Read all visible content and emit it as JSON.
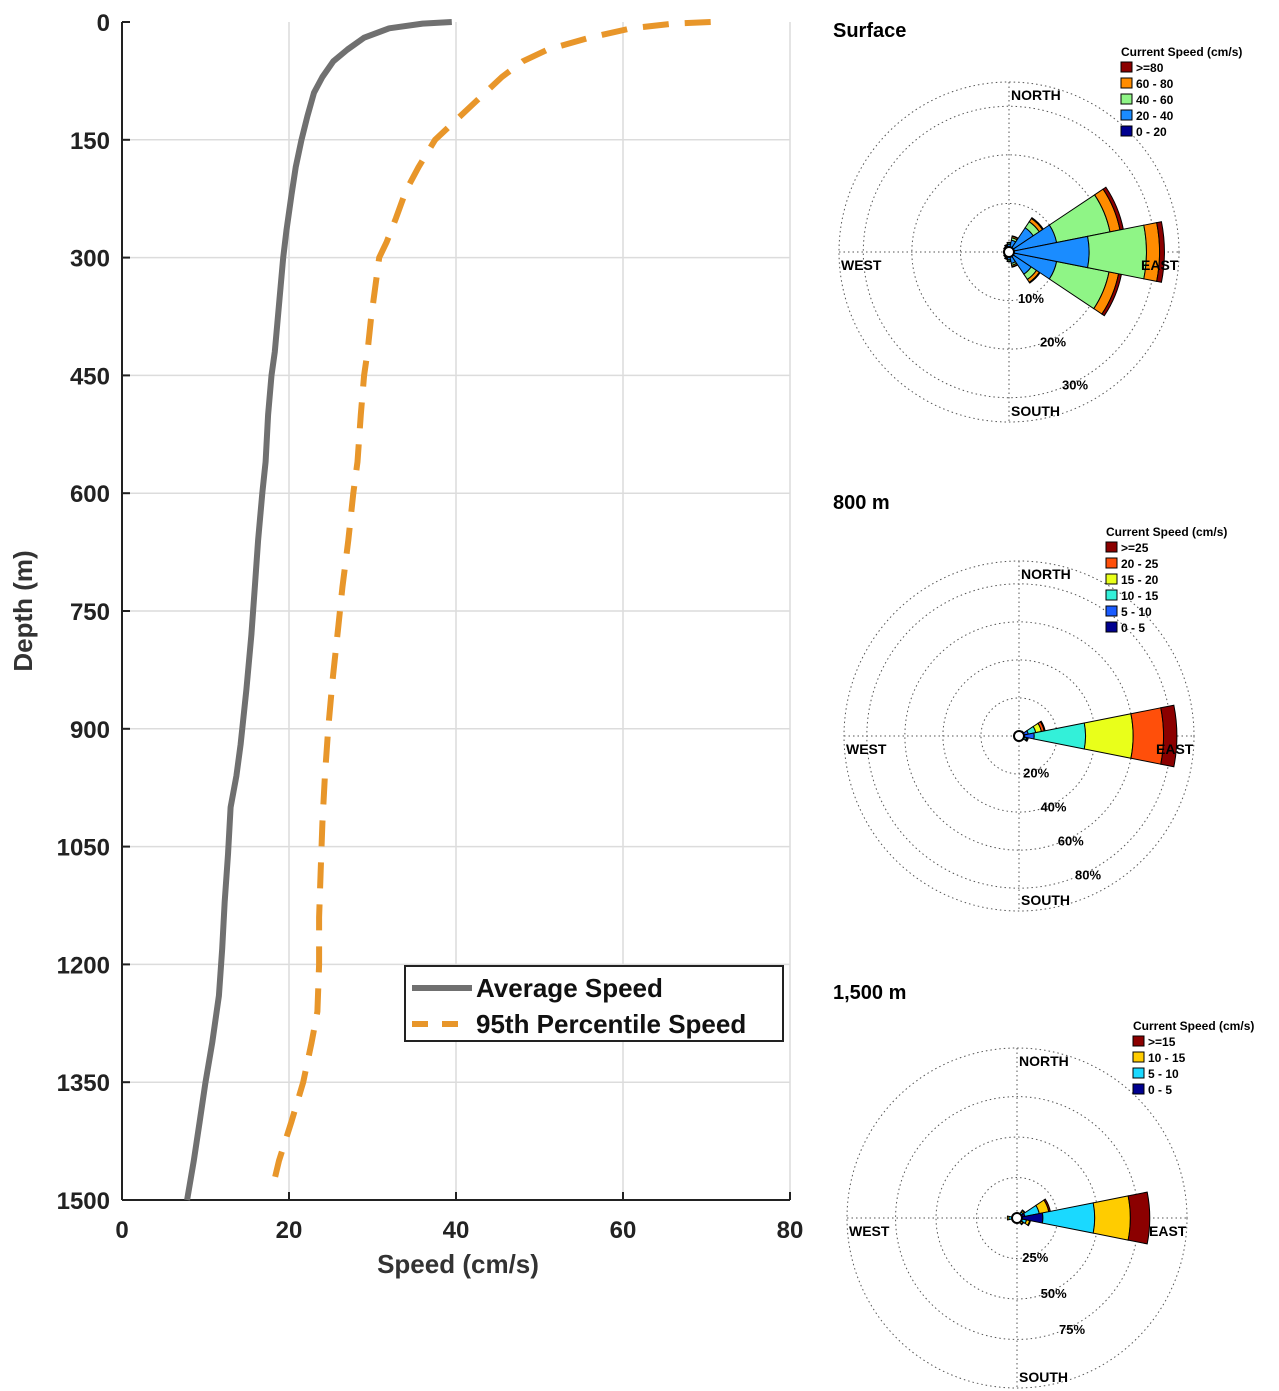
{
  "profile": {
    "xlabel": "Speed (cm/s)",
    "ylabel": "Depth (m)",
    "xticks": [
      "0",
      "20",
      "40",
      "60",
      "80"
    ],
    "yticks": [
      "0",
      "150",
      "300",
      "450",
      "600",
      "750",
      "900",
      "1050",
      "1200",
      "1350",
      "1500"
    ],
    "legend": {
      "average": "Average Speed",
      "p95": "95th Percentile Speed"
    }
  },
  "chart_data": [
    {
      "type": "line",
      "xlabel": "Speed (cm/s)",
      "ylabel": "Depth (m)",
      "xlim": [
        0,
        80
      ],
      "ylim": [
        1500,
        0
      ],
      "y_axis_reversed": true,
      "grid": true,
      "legend_position": "lower-right",
      "series": [
        {
          "name": "Average Speed",
          "style": "solid",
          "color": "#707070",
          "points": [
            [
              39.5,
              0
            ],
            [
              36,
              2
            ],
            [
              32,
              8
            ],
            [
              29,
              20
            ],
            [
              27,
              35
            ],
            [
              25.3,
              50
            ],
            [
              24,
              70
            ],
            [
              23,
              90
            ],
            [
              22.2,
              120
            ],
            [
              21.5,
              150
            ],
            [
              20.8,
              185
            ],
            [
              20.3,
              220
            ],
            [
              19.7,
              265
            ],
            [
              19.3,
              300
            ],
            [
              18.8,
              360
            ],
            [
              18.3,
              420
            ],
            [
              17.9,
              450
            ],
            [
              17.5,
              500
            ],
            [
              17.2,
              560
            ],
            [
              16.8,
              600
            ],
            [
              16.3,
              660
            ],
            [
              15.9,
              720
            ],
            [
              15.5,
              780
            ],
            [
              14.9,
              850
            ],
            [
              14.2,
              920
            ],
            [
              13.7,
              960
            ],
            [
              13.0,
              1000
            ],
            [
              12.7,
              1060
            ],
            [
              12.3,
              1120
            ],
            [
              12.0,
              1180
            ],
            [
              11.6,
              1240
            ],
            [
              10.8,
              1300
            ],
            [
              10.0,
              1350
            ],
            [
              9.3,
              1400
            ],
            [
              8.6,
              1450
            ],
            [
              7.8,
              1500
            ]
          ]
        },
        {
          "name": "95th Percentile Speed",
          "style": "dashed",
          "color": "#e8962a",
          "points": [
            [
              70.5,
              0
            ],
            [
              66,
              2
            ],
            [
              61,
              8
            ],
            [
              56,
              20
            ],
            [
              51,
              35
            ],
            [
              48,
              50
            ],
            [
              45.5,
              70
            ],
            [
              42.5,
              100
            ],
            [
              39.5,
              130
            ],
            [
              37.5,
              150
            ],
            [
              35.5,
              185
            ],
            [
              34,
              215
            ],
            [
              32.8,
              250
            ],
            [
              31.7,
              280
            ],
            [
              30.8,
              300
            ],
            [
              30.3,
              340
            ],
            [
              29.8,
              380
            ],
            [
              29.4,
              420
            ],
            [
              29.0,
              450
            ],
            [
              28.6,
              500
            ],
            [
              28.2,
              560
            ],
            [
              27.7,
              600
            ],
            [
              27.1,
              660
            ],
            [
              26.4,
              720
            ],
            [
              25.9,
              770
            ],
            [
              25.2,
              840
            ],
            [
              24.7,
              900
            ],
            [
              24.3,
              960
            ],
            [
              24.0,
              1020
            ],
            [
              23.8,
              1080
            ],
            [
              23.6,
              1140
            ],
            [
              23.6,
              1200
            ],
            [
              23.4,
              1260
            ],
            [
              22.7,
              1300
            ],
            [
              21.7,
              1350
            ],
            [
              20.3,
              1400
            ],
            [
              18.8,
              1450
            ],
            [
              17.9,
              1490
            ]
          ]
        }
      ]
    },
    {
      "type": "wind-rose",
      "title": "Surface",
      "legend_title": "Current Speed (cm/s)",
      "bins": [
        "0 - 20",
        "20 - 40",
        "40 - 60",
        "60 - 80",
        ">=80"
      ],
      "legend_order": [
        ">=80",
        "60 - 80",
        "40 - 60",
        "20 - 40",
        "0 - 20"
      ],
      "colors": [
        "#00008f",
        "#1a8cff",
        "#8ff586",
        "#ff8c00",
        "#8b0000"
      ],
      "ring_values": [
        10,
        20,
        30
      ],
      "ring_labels": [
        "10%",
        "20%",
        "30%"
      ],
      "rmax": 35,
      "compass": {
        "north": "NORTH",
        "south": "SOUTH",
        "east": "EAST",
        "west": "WEST"
      },
      "sectors": [
        {
          "direction": 90,
          "cumulative": [
            1.0,
            16.5,
            28.3,
            31.0,
            32.0
          ]
        },
        {
          "direction": 67.5,
          "cumulative": [
            1.0,
            10.0,
            21.2,
            23.3,
            24.0
          ]
        },
        {
          "direction": 112.5,
          "cumulative": [
            1.0,
            10.0,
            21.0,
            23.0,
            23.6
          ]
        },
        {
          "direction": 45,
          "cumulative": [
            1.0,
            6.0,
            7.5,
            8.3,
            8.5
          ]
        },
        {
          "direction": 135,
          "cumulative": [
            1.0,
            5.5,
            6.8,
            7.5,
            7.7
          ]
        },
        {
          "direction": 22.5,
          "cumulative": [
            0.8,
            2.5,
            3.0,
            3.3,
            3.4
          ]
        },
        {
          "direction": 157.5,
          "cumulative": [
            0.8,
            2.4,
            2.8,
            3.1,
            3.2
          ]
        },
        {
          "direction": 0,
          "cumulative": [
            0.6,
            1.6,
            1.9,
            2.0,
            2.0
          ]
        },
        {
          "direction": 180,
          "cumulative": [
            0.6,
            1.6,
            1.9,
            2.0,
            2.0
          ]
        },
        {
          "direction": 202.5,
          "cumulative": [
            0.5,
            1.3,
            1.5,
            1.6,
            1.6
          ]
        },
        {
          "direction": 337.5,
          "cumulative": [
            0.5,
            1.3,
            1.5,
            1.6,
            1.6
          ]
        },
        {
          "direction": 225,
          "cumulative": [
            0.5,
            1.0,
            1.2,
            1.3,
            1.3
          ]
        },
        {
          "direction": 315,
          "cumulative": [
            0.5,
            1.0,
            1.2,
            1.3,
            1.3
          ]
        },
        {
          "direction": 247.5,
          "cumulative": [
            0.4,
            0.9,
            1.0,
            1.1,
            1.1
          ]
        },
        {
          "direction": 292.5,
          "cumulative": [
            0.4,
            0.9,
            1.0,
            1.1,
            1.1
          ]
        },
        {
          "direction": 270,
          "cumulative": [
            0.4,
            0.8,
            0.9,
            1.0,
            1.0
          ]
        }
      ]
    },
    {
      "type": "wind-rose",
      "title": "800 m",
      "legend_title": "Current Speed (cm/s)",
      "bins": [
        "0 - 5",
        "5 - 10",
        "10 - 15",
        "15 - 20",
        "20 - 25",
        ">=25"
      ],
      "legend_order": [
        ">=25",
        "20 - 25",
        "15 - 20",
        "10 - 15",
        "5 - 10",
        "0 - 5"
      ],
      "colors": [
        "#00008f",
        "#1a5cff",
        "#33f0d9",
        "#e9ff1a",
        "#ff4f0a",
        "#8b0000"
      ],
      "ring_values": [
        20,
        40,
        60,
        80
      ],
      "ring_labels": [
        "20%",
        "40%",
        "60%",
        "80%"
      ],
      "rmax": 92,
      "compass": {
        "north": "NORTH",
        "south": "SOUTH",
        "east": "EAST",
        "west": "WEST"
      },
      "sectors": [
        {
          "direction": 90,
          "cumulative": [
            3.0,
            8.0,
            35.0,
            60.0,
            76.0,
            83.0
          ]
        },
        {
          "direction": 67.5,
          "cumulative": [
            2.0,
            5.0,
            9.0,
            12.0,
            13.5,
            14.0
          ]
        },
        {
          "direction": 112.5,
          "cumulative": [
            1.5,
            3.0,
            4.0,
            4.5,
            5.0,
            5.0
          ]
        },
        {
          "direction": 45,
          "cumulative": [
            1.0,
            2.0,
            2.5,
            2.8,
            3.0,
            3.0
          ]
        },
        {
          "direction": 135,
          "cumulative": [
            1.0,
            1.8,
            2.2,
            2.5,
            2.6,
            2.6
          ]
        },
        {
          "direction": 0,
          "cumulative": [
            0.8,
            1.2,
            1.4,
            1.5,
            1.5,
            1.5
          ]
        },
        {
          "direction": 180,
          "cumulative": [
            0.8,
            1.2,
            1.4,
            1.5,
            1.5,
            1.5
          ]
        }
      ]
    },
    {
      "type": "wind-rose",
      "title": "1,500 m",
      "legend_title": "Current Speed (cm/s)",
      "bins": [
        "0 - 5",
        "5 - 10",
        "10 - 15",
        ">=15"
      ],
      "legend_order": [
        ">=15",
        "10 - 15",
        "5 - 10",
        "0 - 5"
      ],
      "colors": [
        "#00008f",
        "#1ad9ff",
        "#ffcc00",
        "#8b0000"
      ],
      "ring_values": [
        25,
        50,
        75
      ],
      "ring_labels": [
        "25%",
        "50%",
        "75%"
      ],
      "rmax": 105,
      "compass": {
        "north": "NORTH",
        "south": "SOUTH",
        "east": "EAST",
        "west": "WEST"
      },
      "sectors": [
        {
          "direction": 90,
          "cumulative": [
            16.0,
            48.0,
            70.0,
            82.0
          ]
        },
        {
          "direction": 67.5,
          "cumulative": [
            5.0,
            14.0,
            20.0,
            21.0
          ]
        },
        {
          "direction": 112.5,
          "cumulative": [
            3.0,
            6.0,
            8.0,
            8.5
          ]
        },
        {
          "direction": 45,
          "cumulative": [
            2.5,
            4.5,
            5.5,
            6.0
          ]
        },
        {
          "direction": 135,
          "cumulative": [
            2.0,
            3.5,
            4.5,
            5.0
          ]
        },
        {
          "direction": 270,
          "cumulative": [
            3.0,
            5.0,
            6.0,
            6.0
          ]
        },
        {
          "direction": 0,
          "cumulative": [
            1.0,
            1.5,
            2.0,
            2.0
          ]
        },
        {
          "direction": 180,
          "cumulative": [
            1.0,
            1.5,
            2.0,
            2.0
          ]
        }
      ]
    }
  ]
}
